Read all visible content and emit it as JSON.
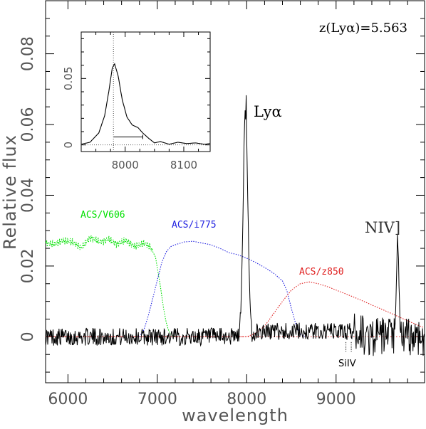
{
  "chart_data": [
    {
      "type": "line",
      "title": "",
      "xlabel": "wavelength",
      "ylabel": "Relative flux",
      "xlim": [
        5750,
        9990
      ],
      "ylim": [
        -0.013,
        0.095
      ],
      "xticks": [
        6000,
        7000,
        8000,
        9000
      ],
      "yticks": [
        0,
        0.02,
        0.04,
        0.06,
        0.08
      ],
      "xtick_labels": [
        "6000",
        "7000",
        "8000",
        "9000"
      ],
      "ytick_labels": [
        "0",
        "0.02",
        "0.04",
        "0.06",
        "0.08"
      ],
      "annotations": {
        "redshift": "z(Lyα)=5.563",
        "lya": "Lyα",
        "niv": "NIV]",
        "siiv": "SiIV"
      },
      "series": [
        {
          "name": "ACS/V606",
          "color": "#00e000",
          "style": "dotted",
          "x": [
            5750,
            5850,
            5950,
            6050,
            6150,
            6250,
            6350,
            6450,
            6550,
            6650,
            6750,
            6850,
            6920,
            6980,
            7030,
            7070,
            7100,
            7130,
            7160,
            7200
          ],
          "values": [
            0.0265,
            0.0262,
            0.0272,
            0.0268,
            0.0252,
            0.028,
            0.0268,
            0.0275,
            0.0262,
            0.0272,
            0.0255,
            0.0265,
            0.0255,
            0.0225,
            0.015,
            0.008,
            0.004,
            0.0015,
            0.0005,
            0.0
          ]
        },
        {
          "name": "ACS/i775",
          "color": "#2020e0",
          "style": "dotted",
          "x": [
            6800,
            6850,
            6900,
            6950,
            7000,
            7050,
            7100,
            7150,
            7200,
            7300,
            7400,
            7500,
            7600,
            7700,
            7800,
            7900,
            8000,
            8100,
            8200,
            8300,
            8400,
            8450,
            8500,
            8550,
            8600,
            8650
          ],
          "values": [
            0.0,
            0.002,
            0.006,
            0.011,
            0.016,
            0.021,
            0.024,
            0.0255,
            0.026,
            0.0268,
            0.027,
            0.0265,
            0.026,
            0.025,
            0.0238,
            0.0232,
            0.0222,
            0.021,
            0.0196,
            0.018,
            0.0158,
            0.013,
            0.008,
            0.0035,
            0.0008,
            0.0
          ]
        },
        {
          "name": "ACS/z850",
          "color": "#e02020",
          "style": "dotted",
          "x": [
            5750,
            8000,
            8100,
            8200,
            8300,
            8400,
            8500,
            8600,
            8700,
            8800,
            8900,
            9000,
            9200,
            9400,
            9600,
            9800,
            9990
          ],
          "values": [
            0.0,
            0.0,
            0.001,
            0.003,
            0.0065,
            0.01,
            0.0132,
            0.015,
            0.0155,
            0.015,
            0.0142,
            0.0132,
            0.0112,
            0.009,
            0.0068,
            0.0045,
            0.0025
          ]
        }
      ],
      "spectrum": {
        "name": "",
        "color": "#000000",
        "noise_amplitude": 0.0025,
        "lines": [
          {
            "center": 7985,
            "peak": 0.0625,
            "width": 25
          },
          {
            "center": 9690,
            "peak": 0.027,
            "width": 12
          }
        ]
      }
    },
    {
      "type": "line",
      "title": "",
      "xlabel": "",
      "ylabel": "",
      "xlim": [
        7925,
        8145
      ],
      "ylim": [
        -0.005,
        0.085
      ],
      "xticks": [
        8000,
        8100
      ],
      "yticks": [
        0,
        0.05
      ],
      "xtick_labels": [
        "8000",
        "8100"
      ],
      "ytick_labels": [
        "0",
        "0.05"
      ],
      "marker_x": 7980,
      "width_bar": [
        7980,
        8030
      ],
      "series": [
        {
          "name": "",
          "color": "#000000",
          "x": [
            7925,
            7940,
            7955,
            7965,
            7972,
            7978,
            7982,
            7988,
            7995,
            8003,
            8012,
            8022,
            8030,
            8040,
            8050,
            8060,
            8075,
            8090,
            8105,
            8120,
            8135,
            8145
          ],
          "values": [
            0.0005,
            0.002,
            0.009,
            0.022,
            0.04,
            0.058,
            0.061,
            0.052,
            0.034,
            0.021,
            0.015,
            0.013,
            0.009,
            0.005,
            0.0015,
            0.0025,
            0.0005,
            0.002,
            0.001,
            0.0015,
            0.0005,
            0.001
          ]
        }
      ]
    }
  ]
}
